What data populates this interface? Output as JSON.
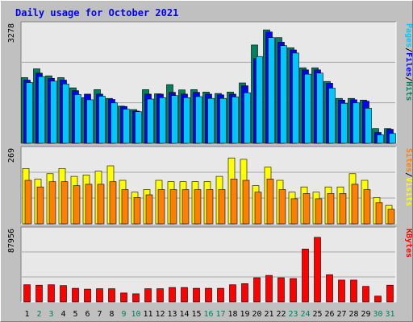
{
  "chart_title": "Daily usage for October 2021",
  "colors": {
    "hits": "#00805c",
    "files": "#0000ff",
    "pages": "#00c8ff",
    "visits": "#ffff00",
    "sites": "#ff8000",
    "kbytes": "#ff0000",
    "weekend_label": "#00805c",
    "weekday_label": "#000000"
  },
  "chart_data": [
    {
      "type": "bar",
      "title": "Daily usage for October 2021",
      "axis_max_label": "3278",
      "ylim": [
        0,
        3278
      ],
      "legend": [
        "Pages",
        "Files",
        "Hits"
      ],
      "legend_sep": "/",
      "categories": [
        "1",
        "2",
        "3",
        "4",
        "5",
        "6",
        "7",
        "8",
        "9",
        "10",
        "11",
        "12",
        "13",
        "14",
        "15",
        "16",
        "17",
        "18",
        "19",
        "20",
        "21",
        "22",
        "23",
        "24",
        "25",
        "26",
        "27",
        "28",
        "29",
        "30",
        "31"
      ],
      "weekend_days": [
        "2",
        "3",
        "9",
        "10",
        "16",
        "17",
        "23",
        "24",
        "30",
        "31"
      ],
      "series": [
        {
          "name": "Hits",
          "values": [
            1870,
            2120,
            1920,
            1870,
            1580,
            1300,
            1530,
            1280,
            1060,
            960,
            1530,
            1410,
            1670,
            1520,
            1530,
            1460,
            1420,
            1460,
            1720,
            2800,
            3230,
            3010,
            2720,
            2150,
            2150,
            1760,
            1280,
            1280,
            1230,
            420,
            420
          ]
        },
        {
          "name": "Files",
          "values": [
            1800,
            2000,
            1850,
            1800,
            1500,
            1400,
            1400,
            1250,
            1050,
            920,
            1400,
            1400,
            1450,
            1400,
            1450,
            1400,
            1380,
            1400,
            1640,
            2410,
            3170,
            2880,
            2660,
            2090,
            2090,
            1710,
            1230,
            1240,
            1200,
            310,
            400
          ]
        },
        {
          "name": "Pages",
          "values": [
            1730,
            1900,
            1770,
            1690,
            1390,
            1240,
            1340,
            1150,
            970,
            900,
            1260,
            1300,
            1360,
            1300,
            1330,
            1280,
            1280,
            1320,
            1440,
            2470,
            3010,
            2780,
            2570,
            1970,
            2000,
            1570,
            1140,
            1150,
            1000,
            240,
            280
          ]
        }
      ]
    },
    {
      "type": "bar",
      "axis_max_label": "269",
      "ylim": [
        0,
        269
      ],
      "legend": [
        "Sites",
        "Visits"
      ],
      "legend_sep": "/",
      "categories": [
        "1",
        "2",
        "3",
        "4",
        "5",
        "6",
        "7",
        "8",
        "9",
        "10",
        "11",
        "12",
        "13",
        "14",
        "15",
        "16",
        "17",
        "18",
        "19",
        "20",
        "21",
        "22",
        "23",
        "24",
        "25",
        "26",
        "27",
        "28",
        "29",
        "30",
        "31"
      ],
      "series": [
        {
          "name": "Visits",
          "values": [
            210,
            170,
            190,
            210,
            180,
            185,
            200,
            220,
            165,
            120,
            130,
            165,
            160,
            160,
            160,
            160,
            180,
            250,
            245,
            145,
            215,
            165,
            120,
            140,
            120,
            140,
            140,
            190,
            165,
            100,
            70
          ]
        },
        {
          "name": "Sites",
          "values": [
            165,
            140,
            160,
            160,
            145,
            150,
            150,
            160,
            130,
            100,
            110,
            130,
            130,
            130,
            130,
            130,
            130,
            170,
            165,
            120,
            170,
            130,
            95,
            115,
            95,
            115,
            115,
            150,
            130,
            80,
            55
          ]
        }
      ]
    },
    {
      "type": "bar",
      "axis_max_label": "87956",
      "ylim": [
        0,
        87956
      ],
      "legend": [
        "KBytes"
      ],
      "categories": [
        "1",
        "2",
        "3",
        "4",
        "5",
        "6",
        "7",
        "8",
        "9",
        "10",
        "11",
        "12",
        "13",
        "14",
        "15",
        "16",
        "17",
        "18",
        "19",
        "20",
        "21",
        "22",
        "23",
        "24",
        "25",
        "26",
        "27",
        "28",
        "29",
        "30",
        "31"
      ],
      "series": [
        {
          "name": "KBytes",
          "values": [
            22000,
            21500,
            22000,
            21000,
            17500,
            16500,
            17000,
            17000,
            11500,
            10500,
            17000,
            17000,
            18500,
            18500,
            17500,
            17500,
            17500,
            22000,
            23500,
            31000,
            34000,
            31000,
            30000,
            68000,
            83000,
            35000,
            28000,
            28000,
            20000,
            7500,
            21500
          ]
        }
      ]
    }
  ]
}
